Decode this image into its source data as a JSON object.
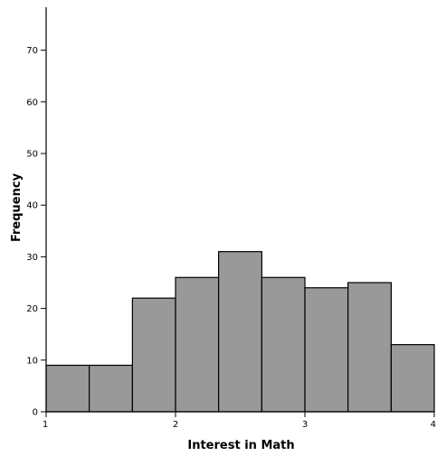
{
  "chart_data": {
    "type": "bar",
    "title": "",
    "xlabel": "Interest in Math",
    "ylabel": "Frequency",
    "bins": [
      {
        "x0": 1.0,
        "x1": 1.333,
        "value": 9
      },
      {
        "x0": 1.333,
        "x1": 1.667,
        "value": 9
      },
      {
        "x0": 1.667,
        "x1": 2.0,
        "value": 22
      },
      {
        "x0": 2.0,
        "x1": 2.333,
        "value": 26
      },
      {
        "x0": 2.333,
        "x1": 2.667,
        "value": 31
      },
      {
        "x0": 2.667,
        "x1": 3.0,
        "value": 26
      },
      {
        "x0": 3.0,
        "x1": 3.333,
        "value": 24
      },
      {
        "x0": 3.333,
        "x1": 3.667,
        "value": 25
      },
      {
        "x0": 3.667,
        "x1": 4.0,
        "value": 13
      }
    ],
    "xlim": [
      1,
      4
    ],
    "ylim": [
      0,
      80
    ],
    "xticks": [
      "1",
      "2",
      "3",
      "4"
    ],
    "yticks": [
      "0",
      "10",
      "20",
      "30",
      "40",
      "50",
      "60",
      "70"
    ],
    "grid": false,
    "colors": {
      "bar_fill": "#999999",
      "bar_stroke": "#000000"
    }
  }
}
